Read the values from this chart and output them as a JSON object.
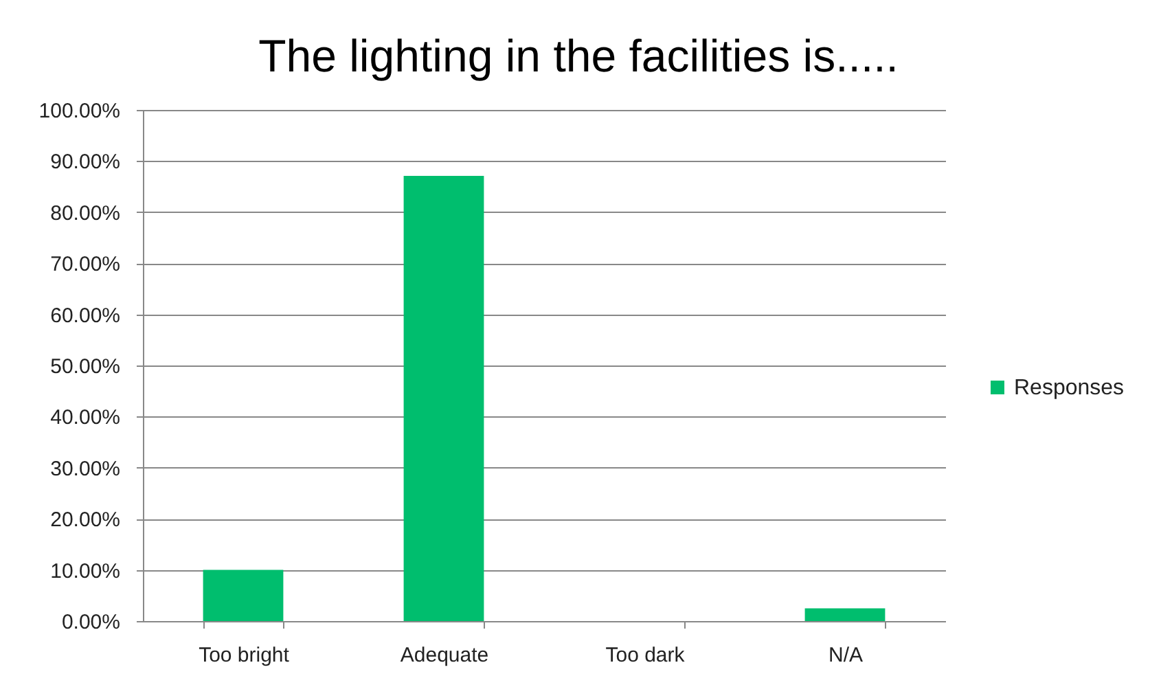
{
  "chart_data": {
    "type": "bar",
    "title": "The lighting in the facilities is.....",
    "categories": [
      "Too bright",
      "Adequate",
      "Too dark",
      "N/A"
    ],
    "series": [
      {
        "name": "Responses",
        "color": "#00be6e",
        "values": [
          10,
          87.1,
          0,
          2.5
        ]
      }
    ],
    "ylim": [
      0,
      100
    ],
    "yticks": [
      {
        "value": 0,
        "label": "0.00%"
      },
      {
        "value": 10,
        "label": "10.00%"
      },
      {
        "value": 20,
        "label": "20.00%"
      },
      {
        "value": 30,
        "label": "30.00%"
      },
      {
        "value": 40,
        "label": "40.00%"
      },
      {
        "value": 50,
        "label": "50.00%"
      },
      {
        "value": 60,
        "label": "60.00%"
      },
      {
        "value": 70,
        "label": "70.00%"
      },
      {
        "value": 80,
        "label": "80.00%"
      },
      {
        "value": 90,
        "label": "90.00%"
      },
      {
        "value": 100,
        "label": "100.00%"
      }
    ],
    "grid": "y",
    "legend": "right"
  }
}
